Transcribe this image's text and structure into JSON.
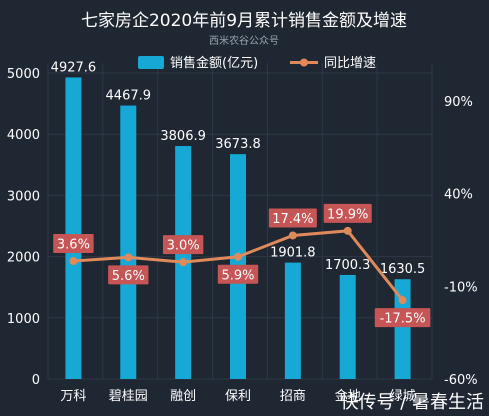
{
  "title": "七家房企2020年前9月累计销售金额及增速",
  "subtitle": "西米农谷公众号",
  "watermark": "快传号 / 暑春生活",
  "colors": {
    "background": "#1f2733",
    "grid": "#2e3846",
    "bar": "#16a9d6",
    "line": "#e0895a",
    "label_box": "#c65555"
  },
  "chart_data": {
    "type": "bar",
    "categories": [
      "万科",
      "碧桂园",
      "融创",
      "保利",
      "招商",
      "金地",
      "绿城"
    ],
    "categories_visible": [
      "万科",
      "碧桂园",
      "融创",
      "保利",
      "招商",
      "金地",
      "绿城"
    ],
    "series": [
      {
        "name": "销售金额(亿元)",
        "type": "bar",
        "axis": "left",
        "values": [
          4927.6,
          4467.9,
          3806.9,
          3673.8,
          1901.8,
          1700.3,
          1630.5
        ],
        "labels": [
          "4927.6",
          "4467.9",
          "3806.9",
          "3673.8",
          "1901.8",
          "1700.3",
          "1630.5"
        ]
      },
      {
        "name": "同比增速",
        "type": "line",
        "axis": "right",
        "values": [
          3.6,
          5.6,
          3.0,
          5.9,
          17.4,
          19.9,
          -17.5
        ],
        "labels": [
          "3.6%",
          "5.6%",
          "3.0%",
          "5.9%",
          "17.4%",
          "19.9%",
          "-17.5%"
        ]
      }
    ],
    "y_left": {
      "min": 0,
      "max": 5000,
      "ticks": [
        "0",
        "1000",
        "2000",
        "3000",
        "4000",
        "5000"
      ]
    },
    "y_right": {
      "min": -60,
      "max": 105,
      "ticks": [
        "-60%",
        "-10%",
        "40%",
        "90%"
      ],
      "tick_values": [
        -60,
        -10,
        40,
        90
      ]
    },
    "legend": "top",
    "grid": true
  }
}
